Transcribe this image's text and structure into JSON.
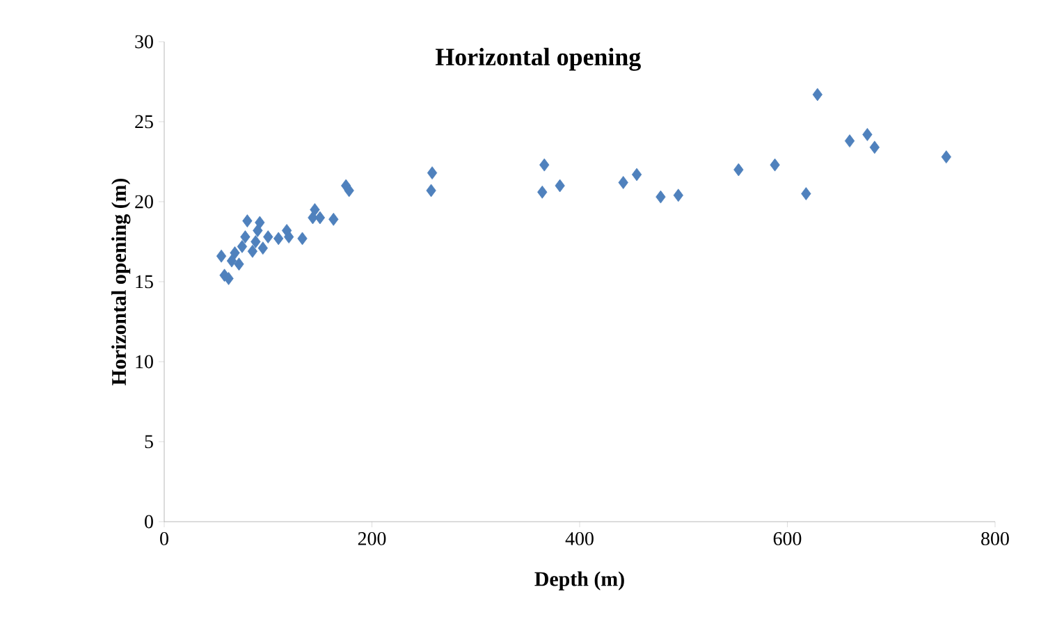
{
  "chart_data": {
    "type": "scatter",
    "title": "Horizontal opening",
    "xlabel": "Depth (m)",
    "ylabel": "Horizontal opening (m)",
    "x": [
      55,
      58,
      62,
      65,
      68,
      72,
      75,
      78,
      80,
      85,
      88,
      90,
      92,
      95,
      100,
      110,
      118,
      120,
      133,
      143,
      145,
      150,
      163,
      175,
      178,
      257,
      258,
      364,
      366,
      381,
      442,
      455,
      478,
      495,
      553,
      588,
      618,
      629,
      660,
      677,
      684,
      753
    ],
    "series": [
      {
        "color": "#4f81bd",
        "values": [
          16.6,
          15.4,
          15.2,
          16.3,
          16.8,
          16.1,
          17.2,
          17.8,
          18.8,
          16.9,
          17.5,
          18.2,
          18.7,
          17.1,
          17.8,
          17.7,
          18.2,
          17.8,
          17.7,
          19.0,
          19.5,
          19.0,
          18.9,
          21.0,
          20.7,
          20.7,
          21.8,
          20.6,
          22.3,
          21.0,
          21.2,
          21.7,
          20.3,
          20.4,
          22.0,
          22.3,
          20.5,
          26.7,
          23.8,
          24.2,
          23.4,
          22.8
        ]
      }
    ],
    "xlim": [
      0,
      800
    ],
    "ylim": [
      0,
      30
    ],
    "xticks": [
      0,
      200,
      400,
      600,
      800
    ],
    "yticks": [
      0,
      5,
      10,
      15,
      20,
      25,
      30
    ],
    "marker": "diamond",
    "grid": false
  }
}
